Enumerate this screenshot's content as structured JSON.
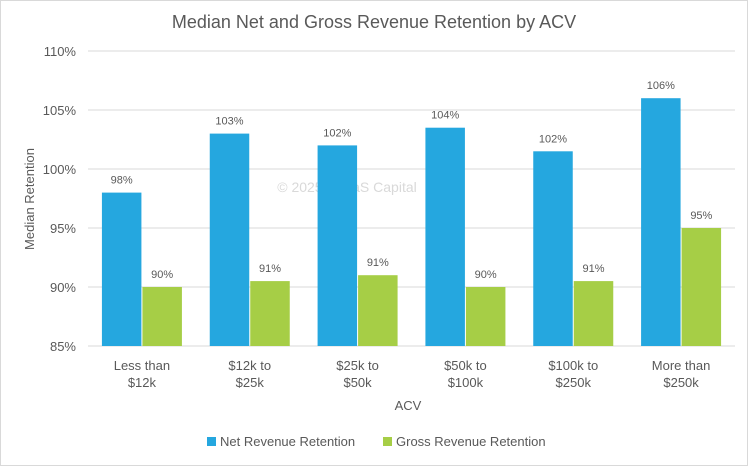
{
  "chart_data": {
    "type": "bar",
    "title": "Median Net and Gross Revenue Retention by ACV",
    "xlabel": "ACV",
    "ylabel": "Median Retention",
    "ylim": [
      85,
      110
    ],
    "y_ticks": [
      "85%",
      "90%",
      "95%",
      "100%",
      "105%",
      "110%"
    ],
    "grid": true,
    "legend_position": "bottom",
    "watermark": "© 2025 - SaaS Capital",
    "categories": [
      [
        "Less than",
        "$12k"
      ],
      [
        "$12k to",
        "$25k"
      ],
      [
        "$25k to",
        "$50k"
      ],
      [
        "$50k to",
        "$100k"
      ],
      [
        "$100k to",
        "$250k"
      ],
      [
        "More than",
        "$250k"
      ]
    ],
    "series": [
      {
        "name": "Net Revenue Retention",
        "color": "#25a7df",
        "values": [
          98,
          103,
          102,
          103.5,
          101.5,
          106
        ],
        "labels": [
          "98%",
          "103%",
          "102%",
          "104%",
          "102%",
          "106%"
        ]
      },
      {
        "name": "Gross Revenue Retention",
        "color": "#a6ce46",
        "values": [
          90,
          90.5,
          91,
          90,
          90.5,
          95
        ],
        "labels": [
          "90%",
          "91%",
          "91%",
          "90%",
          "91%",
          "95%"
        ]
      }
    ]
  }
}
